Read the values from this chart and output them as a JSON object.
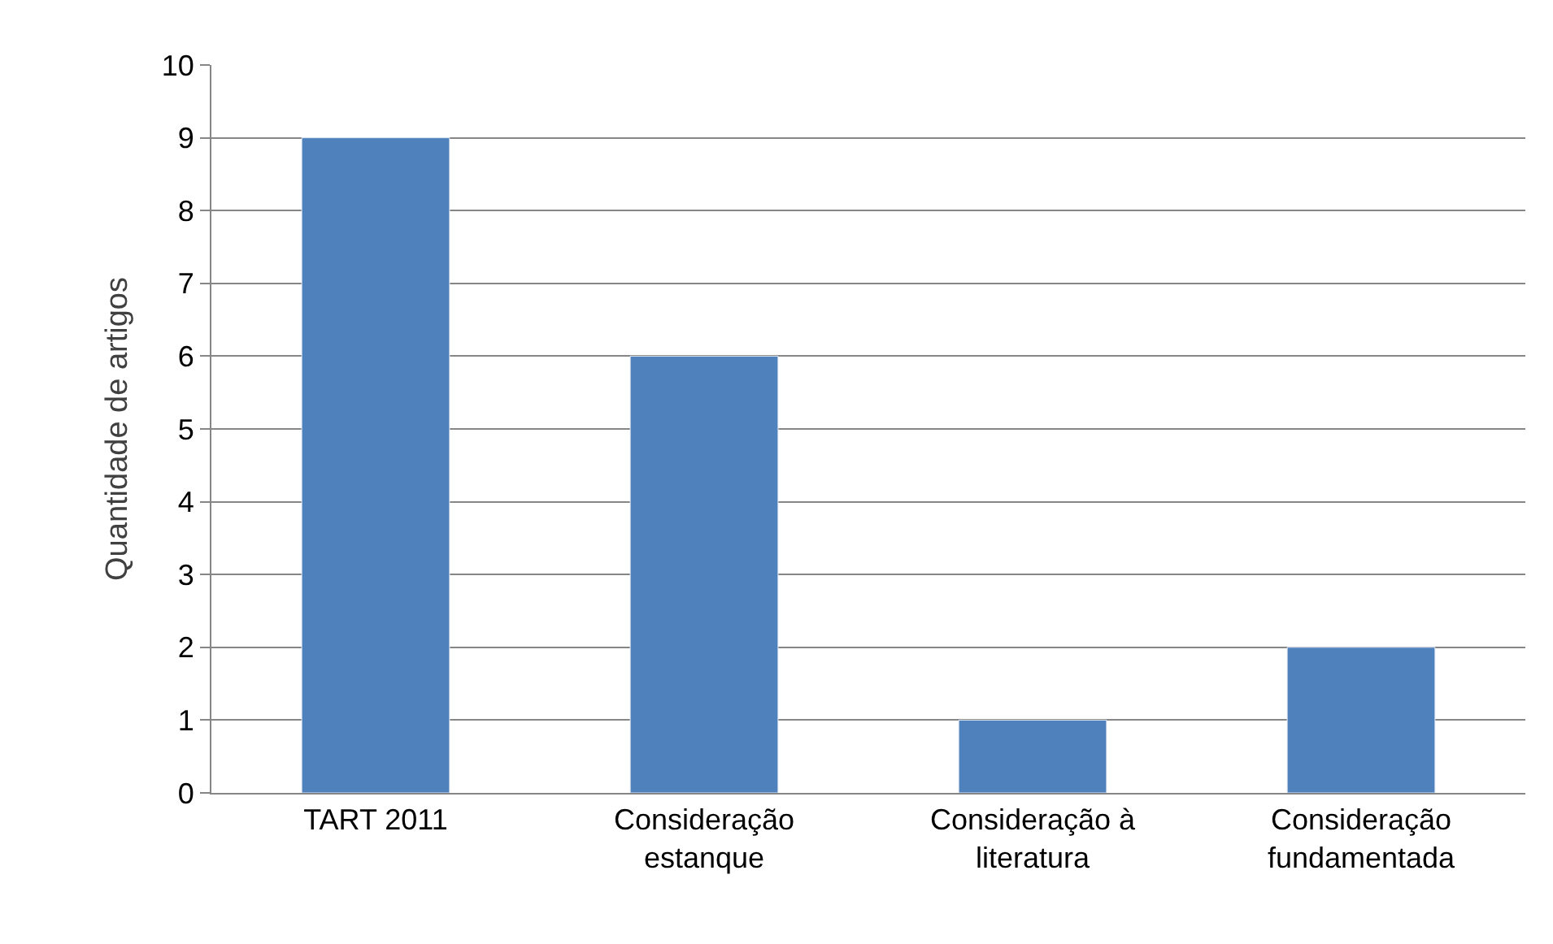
{
  "chart_data": {
    "type": "bar",
    "ylabel": "Quantidade de artigos",
    "categories": [
      "TART 2011",
      "Consideração estanque",
      "Consideração à literatura",
      "Consideração fundamentada"
    ],
    "series": [
      {
        "color": "#4f81bd",
        "values": [
          9,
          6,
          1,
          2
        ]
      }
    ],
    "ylim": [
      0,
      10
    ],
    "yticks": [
      0,
      1,
      2,
      3,
      4,
      5,
      6,
      7,
      8,
      9,
      10
    ],
    "grid": "y"
  }
}
